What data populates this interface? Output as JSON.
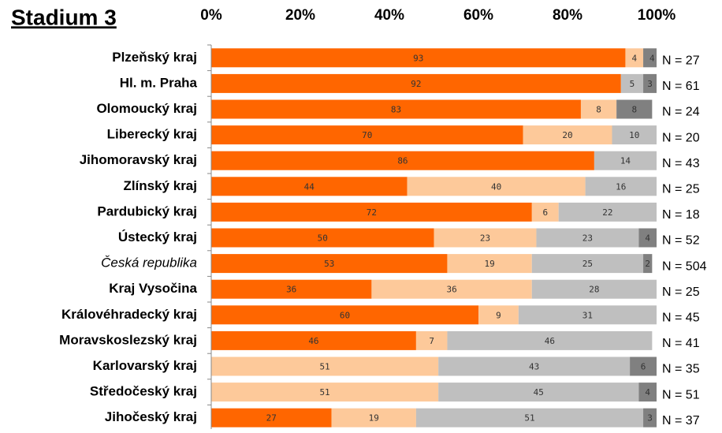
{
  "chart_data": {
    "type": "stacked-bar-horizontal",
    "title": "Stadium 3",
    "categories": [
      "Plzeňský kraj",
      "Hl. m. Praha",
      "Olomoucký kraj",
      "Liberecký kraj",
      "Jihomoravský kraj",
      "Zlínský kraj",
      "Pardubický kraj",
      "Ústecký kraj",
      "Česká republika",
      "Kraj Vysočina",
      "Královéhradecký kraj",
      "Moravskoslezský kraj",
      "Karlovarský kraj",
      "Středočeský kraj",
      "Jihočeský kraj"
    ],
    "series": [
      {
        "color": "#ff6600",
        "values": [
          93,
          92,
          83,
          70,
          86,
          44,
          72,
          50,
          53,
          36,
          60,
          46,
          null,
          null,
          27
        ]
      },
      {
        "color": "#fdc99a",
        "values": [
          4,
          null,
          8,
          20,
          null,
          40,
          6,
          23,
          19,
          36,
          9,
          7,
          51,
          51,
          19
        ]
      },
      {
        "color": "#bfbfbf",
        "values": [
          null,
          5,
          null,
          10,
          14,
          16,
          22,
          23,
          25,
          28,
          31,
          46,
          43,
          45,
          51
        ]
      },
      {
        "color": "#808080",
        "values": [
          4,
          3,
          8,
          null,
          null,
          null,
          null,
          4,
          2,
          null,
          null,
          null,
          6,
          4,
          3
        ]
      }
    ],
    "n_labels": [
      "N = 27",
      "N = 61",
      "N = 24",
      "N = 20",
      "N = 43",
      "N = 25",
      "N = 18",
      "N = 52",
      "N = 504",
      "N = 25",
      "N = 45",
      "N = 41",
      "N = 35",
      "N = 51",
      "N = 37"
    ],
    "xlim": [
      0,
      100
    ],
    "xticks": [
      {
        "value": 0,
        "label": "0%"
      },
      {
        "value": 20,
        "label": "20%"
      },
      {
        "value": 40,
        "label": "40%"
      },
      {
        "value": 60,
        "label": "60%"
      },
      {
        "value": 80,
        "label": "80%"
      },
      {
        "value": 100,
        "label": "100%"
      }
    ]
  }
}
